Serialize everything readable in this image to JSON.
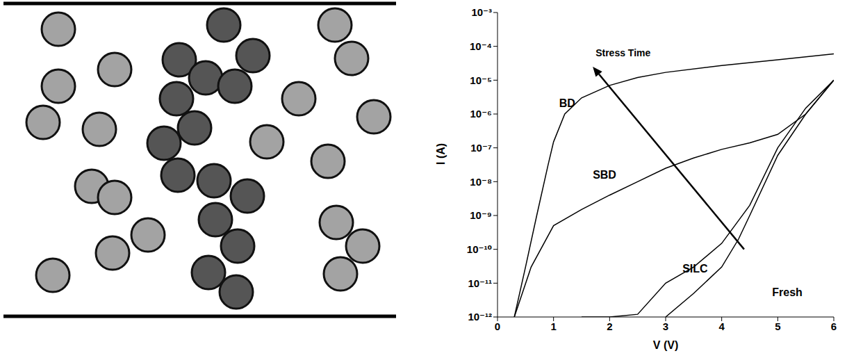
{
  "chart_data": {
    "type": "line",
    "log": "y",
    "xlabel": "V (V)",
    "ylabel": "I (A)",
    "xlim": [
      0,
      6
    ],
    "xticks": [
      0,
      1,
      2,
      3,
      4,
      5,
      6
    ],
    "ylim": [
      1e-12,
      0.001
    ],
    "yticks": [
      {
        "value": 1e-12,
        "label": "10⁻¹²"
      },
      {
        "value": 1e-11,
        "label": "10⁻¹¹"
      },
      {
        "value": 1e-10,
        "label": "10⁻¹⁰"
      },
      {
        "value": 1e-09,
        "label": "10⁻⁹"
      },
      {
        "value": 1e-08,
        "label": "10⁻⁸"
      },
      {
        "value": 1e-07,
        "label": "10⁻⁷"
      },
      {
        "value": 1e-06,
        "label": "10⁻⁶"
      },
      {
        "value": 1e-05,
        "label": "10⁻⁵"
      },
      {
        "value": 0.0001,
        "label": "10⁻⁴"
      },
      {
        "value": 0.001,
        "label": "10⁻³"
      }
    ],
    "annotations": [
      {
        "text": "Stress Time"
      }
    ],
    "series": [
      {
        "name": "BD",
        "color": "#000000",
        "x": [
          0.3,
          0.5,
          0.7,
          0.9,
          1.0,
          1.2,
          1.5,
          2.0,
          2.5,
          3.0,
          4.0,
          5.0,
          6.0
        ],
        "values": [
          1e-12,
          3e-11,
          1e-09,
          3e-08,
          1.5e-07,
          1e-06,
          3e-06,
          7e-06,
          1.2e-05,
          1.7e-05,
          2.7e-05,
          4e-05,
          6e-05
        ]
      },
      {
        "name": "SBD",
        "color": "#000000",
        "x": [
          0.3,
          0.6,
          1.0,
          1.5,
          2.0,
          2.5,
          3.0,
          3.5,
          4.0,
          4.5,
          5.0,
          5.5,
          6.0
        ],
        "values": [
          1e-12,
          3e-11,
          5e-10,
          1.5e-09,
          4e-09,
          1e-08,
          2.5e-08,
          5e-08,
          9e-08,
          1.4e-07,
          2.5e-07,
          1e-06,
          1e-05
        ]
      },
      {
        "name": "SILC",
        "color": "#000000",
        "x": [
          1.5,
          2.0,
          2.5,
          3.0,
          3.5,
          4.0,
          4.5,
          5.0,
          5.5,
          6.0
        ],
        "values": [
          1e-12,
          1e-12,
          1.2e-12,
          1e-11,
          3e-11,
          1.5e-10,
          2e-09,
          1e-07,
          1.5e-06,
          1e-05
        ]
      },
      {
        "name": "Fresh",
        "color": "#000000",
        "x": [
          3.0,
          3.5,
          4.0,
          4.3,
          4.5,
          5.0,
          5.5,
          6.0
        ],
        "values": [
          1e-12,
          5e-12,
          3e-11,
          2e-10,
          1e-09,
          6e-08,
          1e-06,
          1e-05
        ]
      }
    ]
  }
}
